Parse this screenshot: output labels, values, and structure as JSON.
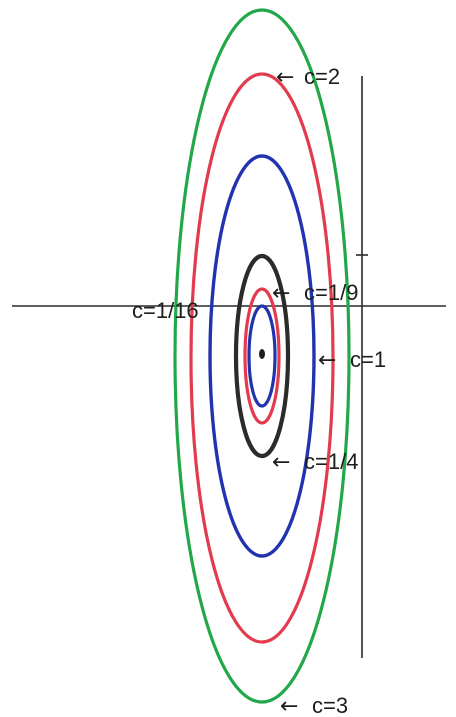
{
  "colors": {
    "background": "#ffffff",
    "axis": "#2a2a2a",
    "green": "#22a84a",
    "red": "#e23b4e",
    "blue": "#2233b0",
    "black": "#2b2b2b"
  },
  "contours": [
    {
      "label": "c=3",
      "color_name": "green",
      "arrow": "←"
    },
    {
      "label": "c=2",
      "color_name": "red",
      "arrow": "←"
    },
    {
      "label": "c=1",
      "color_name": "blue",
      "arrow": "←"
    },
    {
      "label": "c=1/4",
      "color_name": "black",
      "arrow": "←"
    },
    {
      "label": "c=1/9",
      "color_name": "red",
      "arrow": "←"
    },
    {
      "label": "c=1/16",
      "color_name": "blue",
      "arrow": ""
    }
  ]
}
